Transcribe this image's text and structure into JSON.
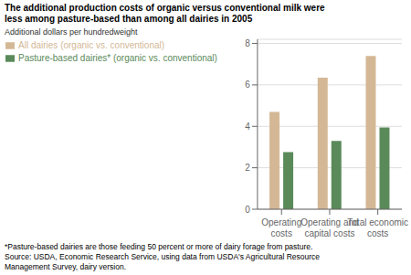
{
  "chart_data": {
    "type": "bar",
    "title": "The additional production costs of organic versus conventional milk were\nless among pasture-based than among all dairies in 2005",
    "ylabel": "Additional dollars per hundredweight",
    "categories": [
      "Operating\ncosts",
      "Operating and\ncapital costs",
      "Total economic\ncosts"
    ],
    "series": [
      {
        "name": "All dairies (organic vs. conventional)",
        "color": "#D4B896",
        "values": [
          4.7,
          6.35,
          7.4
        ]
      },
      {
        "name": "Pasture-based dairies* (organic vs. conventional)",
        "color": "#5A8A5A",
        "values": [
          2.75,
          3.3,
          3.95
        ]
      }
    ],
    "ylim": [
      0,
      8.2
    ],
    "yticks": [
      0,
      2,
      4,
      6,
      8
    ],
    "grid": true,
    "legend": "top",
    "annotations": [
      "*Pasture-based dairies are those feeding 50 percent or more of dairy forage from pasture.",
      "Source: USDA, Economic Research Service, using data from USDA's Agricultural Resource",
      "Management Survey, dairy version."
    ]
  }
}
